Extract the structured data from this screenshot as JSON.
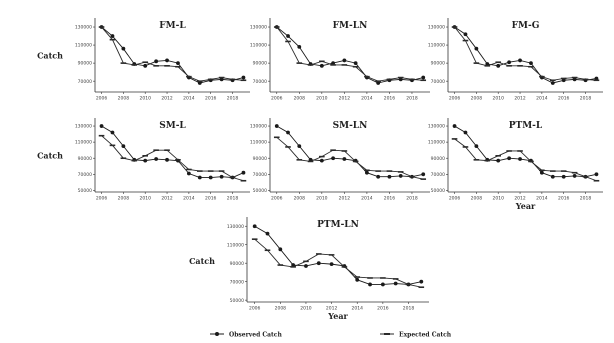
{
  "legend": {
    "observed_label": "Observed Catch",
    "expected_label": "Expected Catch"
  },
  "colors": {
    "observed": "#1a1a1a",
    "expected": "#2a2a2a",
    "axis": "#333333"
  },
  "chart_data": [
    {
      "type": "line",
      "title": "FM-L",
      "ylabel": "Catch",
      "xlabel": "",
      "x": [
        2006,
        2007,
        2008,
        2009,
        2010,
        2011,
        2012,
        2013,
        2014,
        2015,
        2016,
        2017,
        2018,
        2019
      ],
      "xticks": [
        2006,
        2008,
        2010,
        2012,
        2014,
        2016,
        2018
      ],
      "yticks": [
        70000,
        90000,
        110000,
        130000
      ],
      "ylim": [
        58000,
        140000
      ],
      "series": [
        {
          "name": "Observed Catch",
          "marker": "circle",
          "values": [
            130000,
            120000,
            106000,
            89000,
            87000,
            92000,
            93000,
            90000,
            74000,
            68000,
            71000,
            72000,
            71000,
            74000
          ]
        },
        {
          "name": "Expected Catch",
          "marker": "dash",
          "values": [
            130000,
            116000,
            90000,
            88000,
            91000,
            87000,
            87000,
            86000,
            75000,
            70000,
            72000,
            74000,
            72000,
            71000
          ]
        }
      ]
    },
    {
      "type": "line",
      "title": "FM-LN",
      "ylabel": "",
      "xlabel": "",
      "x": [
        2006,
        2007,
        2008,
        2009,
        2010,
        2011,
        2012,
        2013,
        2014,
        2015,
        2016,
        2017,
        2018,
        2019
      ],
      "xticks": [
        2006,
        2008,
        2010,
        2012,
        2014,
        2016,
        2018
      ],
      "yticks": [
        70000,
        90000,
        110000,
        130000
      ],
      "ylim": [
        58000,
        140000
      ],
      "series": [
        {
          "name": "Observed Catch",
          "marker": "circle",
          "values": [
            130000,
            120000,
            108000,
            89000,
            87000,
            90000,
            93000,
            90000,
            74000,
            68000,
            71000,
            72000,
            71000,
            74000
          ]
        },
        {
          "name": "Expected Catch",
          "marker": "dash",
          "values": [
            130000,
            114000,
            90000,
            88000,
            92000,
            88000,
            88000,
            86000,
            75000,
            70000,
            72000,
            74000,
            72000,
            71000
          ]
        }
      ]
    },
    {
      "type": "line",
      "title": "FM-G",
      "ylabel": "",
      "xlabel": "",
      "x": [
        2006,
        2007,
        2008,
        2009,
        2010,
        2011,
        2012,
        2013,
        2014,
        2015,
        2016,
        2017,
        2018,
        2019
      ],
      "xticks": [
        2006,
        2008,
        2010,
        2012,
        2014,
        2016,
        2018
      ],
      "yticks": [
        70000,
        90000,
        110000,
        130000
      ],
      "ylim": [
        58000,
        140000
      ],
      "series": [
        {
          "name": "Observed Catch",
          "marker": "circle",
          "values": [
            130000,
            122000,
            106000,
            89000,
            87000,
            91000,
            93000,
            90000,
            74000,
            68000,
            71000,
            72000,
            71000,
            73000
          ]
        },
        {
          "name": "Expected Catch",
          "marker": "dash",
          "values": [
            130000,
            115000,
            90000,
            87000,
            91000,
            87000,
            87000,
            86000,
            75000,
            71000,
            73000,
            74000,
            72000,
            71000
          ]
        }
      ]
    },
    {
      "type": "line",
      "title": "SM-L",
      "ylabel": "Catch",
      "xlabel": "",
      "x": [
        2006,
        2007,
        2008,
        2009,
        2010,
        2011,
        2012,
        2013,
        2014,
        2015,
        2016,
        2017,
        2018,
        2019
      ],
      "xticks": [
        2006,
        2008,
        2010,
        2012,
        2014,
        2016,
        2018
      ],
      "yticks": [
        50000,
        70000,
        90000,
        110000,
        130000
      ],
      "ylim": [
        48000,
        140000
      ],
      "series": [
        {
          "name": "Observed Catch",
          "marker": "circle",
          "values": [
            130000,
            122000,
            105000,
            88000,
            87000,
            89000,
            88000,
            87000,
            71000,
            66000,
            66000,
            67000,
            66000,
            72000
          ]
        },
        {
          "name": "Expected Catch",
          "marker": "dash",
          "values": [
            118000,
            106000,
            90000,
            87000,
            93000,
            100000,
            100000,
            88000,
            76000,
            74000,
            74000,
            74000,
            66000,
            62000
          ]
        }
      ]
    },
    {
      "type": "line",
      "title": "SM-LN",
      "ylabel": "",
      "xlabel": "",
      "x": [
        2006,
        2007,
        2008,
        2009,
        2010,
        2011,
        2012,
        2013,
        2014,
        2015,
        2016,
        2017,
        2018,
        2019
      ],
      "xticks": [
        2006,
        2008,
        2010,
        2012,
        2014,
        2016,
        2018
      ],
      "yticks": [
        50000,
        70000,
        90000,
        110000,
        130000
      ],
      "ylim": [
        48000,
        140000
      ],
      "series": [
        {
          "name": "Observed Catch",
          "marker": "circle",
          "values": [
            130000,
            122000,
            105000,
            88000,
            87000,
            90000,
            89000,
            87000,
            72000,
            67000,
            67000,
            68000,
            67000,
            70000
          ]
        },
        {
          "name": "Expected Catch",
          "marker": "dash",
          "values": [
            116000,
            104000,
            88000,
            86000,
            92000,
            100000,
            99000,
            86000,
            75000,
            74000,
            74000,
            73000,
            67000,
            64000
          ]
        }
      ]
    },
    {
      "type": "line",
      "title": "PTM-L",
      "ylabel": "",
      "xlabel": "Year",
      "x": [
        2006,
        2007,
        2008,
        2009,
        2010,
        2011,
        2012,
        2013,
        2014,
        2015,
        2016,
        2017,
        2018,
        2019
      ],
      "xticks": [
        2006,
        2008,
        2010,
        2012,
        2014,
        2016,
        2018
      ],
      "yticks": [
        50000,
        70000,
        90000,
        110000,
        130000
      ],
      "ylim": [
        48000,
        140000
      ],
      "series": [
        {
          "name": "Observed Catch",
          "marker": "circle",
          "values": [
            130000,
            122000,
            105000,
            88000,
            87000,
            90000,
            89000,
            87000,
            72000,
            67000,
            67000,
            68000,
            67000,
            70000
          ]
        },
        {
          "name": "Expected Catch",
          "marker": "dash",
          "values": [
            114000,
            104000,
            88000,
            87000,
            93000,
            99000,
            99000,
            86000,
            75000,
            74000,
            74000,
            72000,
            67000,
            62000
          ]
        }
      ]
    },
    {
      "type": "line",
      "title": "PTM-LN",
      "ylabel": "Catch",
      "xlabel": "Year",
      "x": [
        2006,
        2007,
        2008,
        2009,
        2010,
        2011,
        2012,
        2013,
        2014,
        2015,
        2016,
        2017,
        2018,
        2019
      ],
      "xticks": [
        2006,
        2008,
        2010,
        2012,
        2014,
        2016,
        2018
      ],
      "yticks": [
        50000,
        70000,
        90000,
        110000,
        130000
      ],
      "ylim": [
        48000,
        140000
      ],
      "series": [
        {
          "name": "Observed Catch",
          "marker": "circle",
          "values": [
            130000,
            122000,
            105000,
            88000,
            87000,
            90000,
            89000,
            87000,
            72000,
            67000,
            67000,
            68000,
            67000,
            70000
          ]
        },
        {
          "name": "Expected Catch",
          "marker": "dash",
          "values": [
            116000,
            104000,
            88000,
            86000,
            92000,
            100000,
            99000,
            86000,
            75000,
            74000,
            74000,
            73000,
            67000,
            64000
          ]
        }
      ]
    }
  ]
}
